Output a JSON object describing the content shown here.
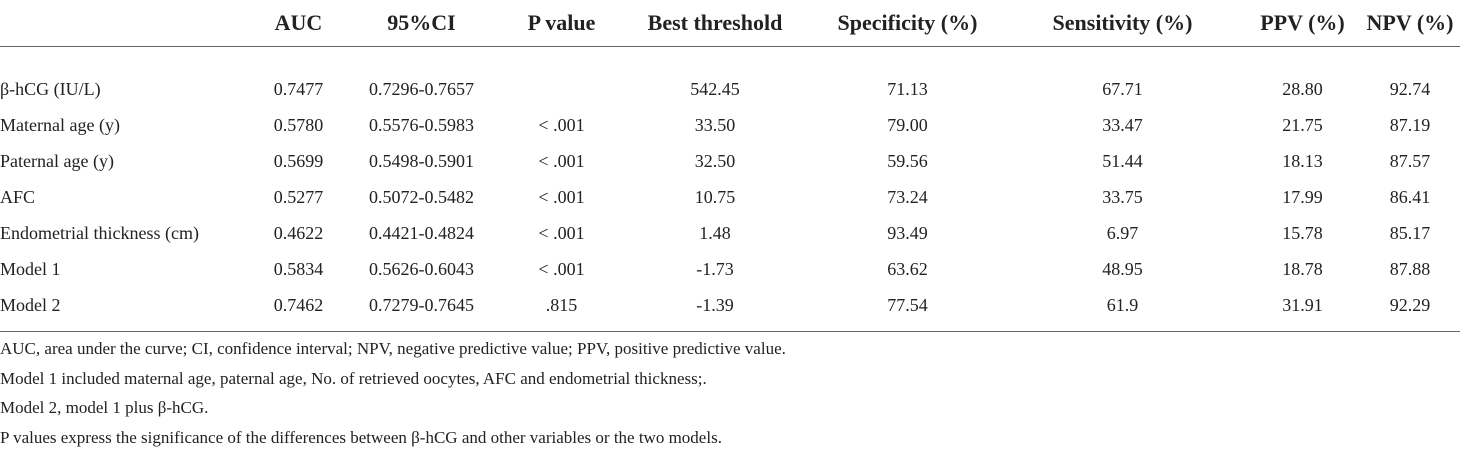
{
  "table": {
    "header": [
      "AUC",
      "95%CI",
      "P value",
      "Best threshold",
      "Specificity (%)",
      "Sensitivity (%)",
      "PPV (%)",
      "NPV (%)"
    ],
    "rows": [
      [
        "β-hCG (IU/L)",
        "0.7477",
        "0.7296-0.7657",
        null,
        "542.45",
        "71.13",
        "67.71",
        "28.80",
        "92.74"
      ],
      [
        "Maternal age (y)",
        "0.5780",
        "0.5576-0.5983",
        "< .001",
        "33.50",
        "79.00",
        "33.47",
        "21.75",
        "87.19"
      ],
      [
        "Paternal age (y)",
        "0.5699",
        "0.5498-0.5901",
        "< .001",
        "32.50",
        "59.56",
        "51.44",
        "18.13",
        "87.57"
      ],
      [
        "AFC",
        "0.5277",
        "0.5072-0.5482",
        "< .001",
        "10.75",
        "73.24",
        "33.75",
        "17.99",
        "86.41"
      ],
      [
        "Endometrial thickness (cm)",
        "0.4622",
        "0.4421-0.4824",
        "< .001",
        "1.48",
        "93.49",
        "6.97",
        "15.78",
        "85.17"
      ],
      [
        "Model 1",
        "0.5834",
        "0.5626-0.6043",
        "< .001",
        "-1.73",
        "63.62",
        "48.95",
        "18.78",
        "87.88"
      ],
      [
        "Model 2",
        "0.7462",
        "0.7279-0.7645",
        ".815",
        "-1.39",
        "77.54",
        "61.9",
        "31.91",
        "92.29"
      ]
    ]
  },
  "footnotes": [
    "AUC, area under the curve; CI, confidence interval; NPV, negative predictive value; PPV, positive predictive value.",
    "Model 1 included maternal age, paternal age, No. of retrieved oocytes, AFC and endometrial thickness;.",
    "Model 2, model 1 plus β-hCG.",
    "P values express the significance of the differences between β-hCG and other variables or the two models."
  ]
}
